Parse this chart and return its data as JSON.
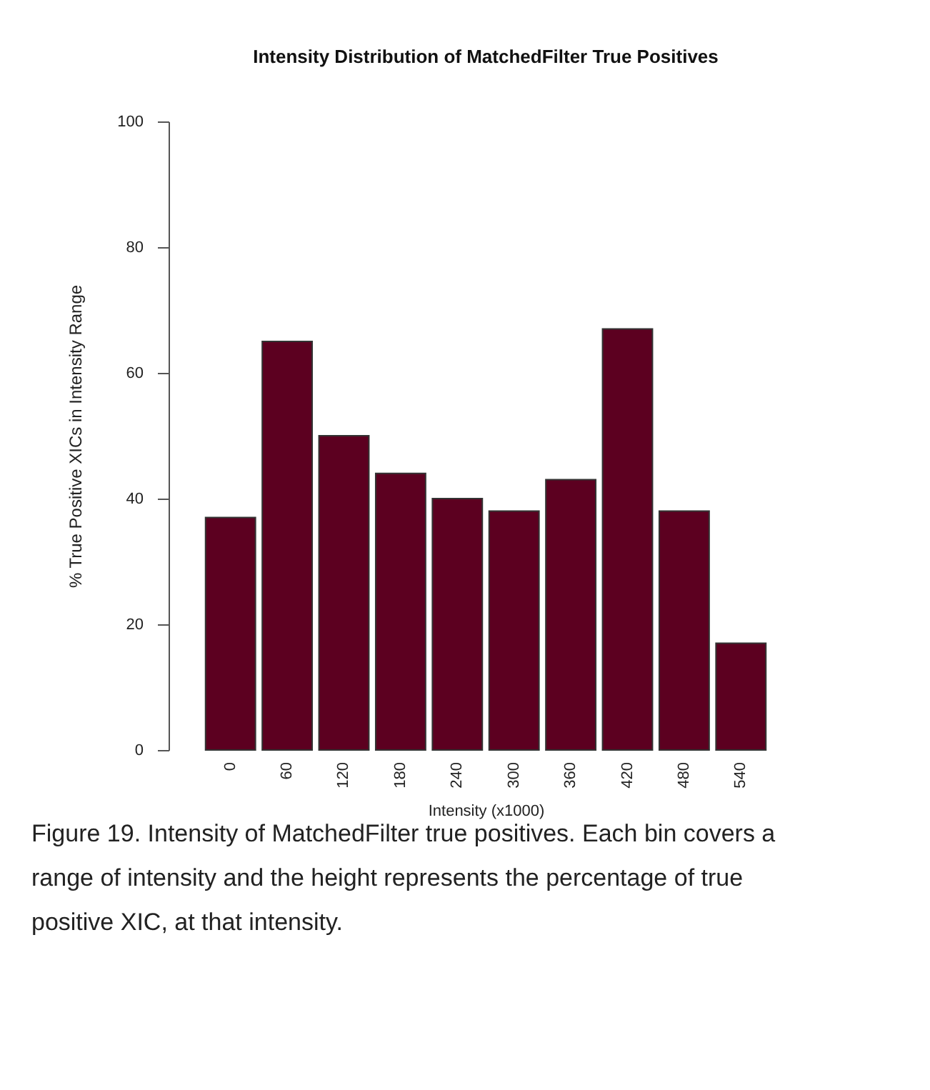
{
  "chart_data": {
    "type": "bar",
    "title": "Intensity Distribution of MatchedFilter True Positives",
    "xlabel": "Intensity (x1000)",
    "ylabel": "% True Positive XICs in Intensity Range",
    "categories": [
      "0",
      "60",
      "120",
      "180",
      "240",
      "300",
      "360",
      "420",
      "480",
      "540"
    ],
    "values": [
      37,
      65,
      50,
      44,
      40,
      38,
      43,
      67,
      38,
      17
    ],
    "color": "#5c0020",
    "ylim": [
      0,
      100
    ],
    "yticks": [
      0,
      20,
      40,
      60,
      80,
      100
    ],
    "grid": false,
    "annotations": [
      "Figure 19. Intensity of MatchedFilter true positives. Each bin covers a range of intensity and the height represents the percentage of true positive XIC, at that intensity."
    ]
  }
}
